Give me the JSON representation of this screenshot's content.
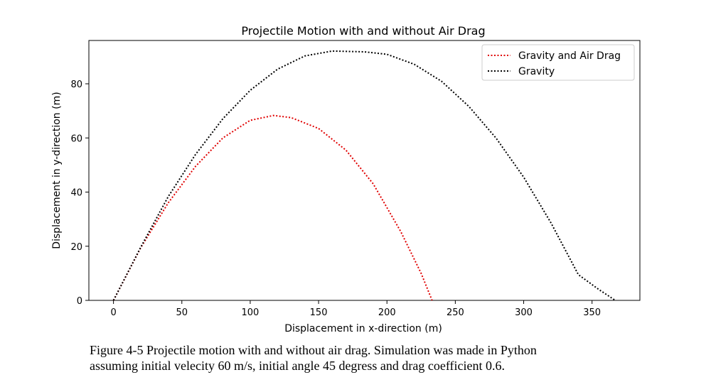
{
  "chart_data": {
    "type": "line",
    "title": "Projectile Motion with and without Air Drag",
    "xlabel": "Displacement in x-direction (m)",
    "ylabel": "Displacement in y-direction (m)",
    "xlim": [
      -18,
      385
    ],
    "ylim": [
      0,
      96
    ],
    "xticks": [
      0,
      50,
      100,
      150,
      200,
      250,
      300,
      350
    ],
    "yticks": [
      0,
      20,
      40,
      60,
      80
    ],
    "grid": false,
    "legend_position": "top-right",
    "series": [
      {
        "name": "Gravity and Air Drag",
        "color": "#e00000",
        "linestyle": "dotted",
        "x": [
          0,
          20,
          40,
          60,
          80,
          100,
          117,
          130,
          150,
          170,
          190,
          210,
          225,
          233
        ],
        "y": [
          0,
          19.5,
          36,
          49.5,
          60,
          66.5,
          68.3,
          67.5,
          63.5,
          55.5,
          43,
          25.5,
          10,
          0
        ]
      },
      {
        "name": "Gravity",
        "color": "#000000",
        "linestyle": "dotted",
        "x": [
          0,
          20,
          40,
          60,
          80,
          100,
          120,
          140,
          160,
          183.5,
          200,
          220,
          240,
          260,
          280,
          300,
          320,
          340,
          355,
          367
        ],
        "y": [
          0,
          19.7,
          38.3,
          53.9,
          67.1,
          77.6,
          85.4,
          90.3,
          92.1,
          91.8,
          90.9,
          87.2,
          80.9,
          71.6,
          59.8,
          45.5,
          28.6,
          9.5,
          4.0,
          0
        ]
      }
    ]
  },
  "caption": {
    "line1": "Figure 4-5 Projectile motion with and without air drag. Simulation was made in Python",
    "line2": "assuming initial velecity 60 m/s, initial angle 45 degress and drag coefficient 0.6."
  }
}
